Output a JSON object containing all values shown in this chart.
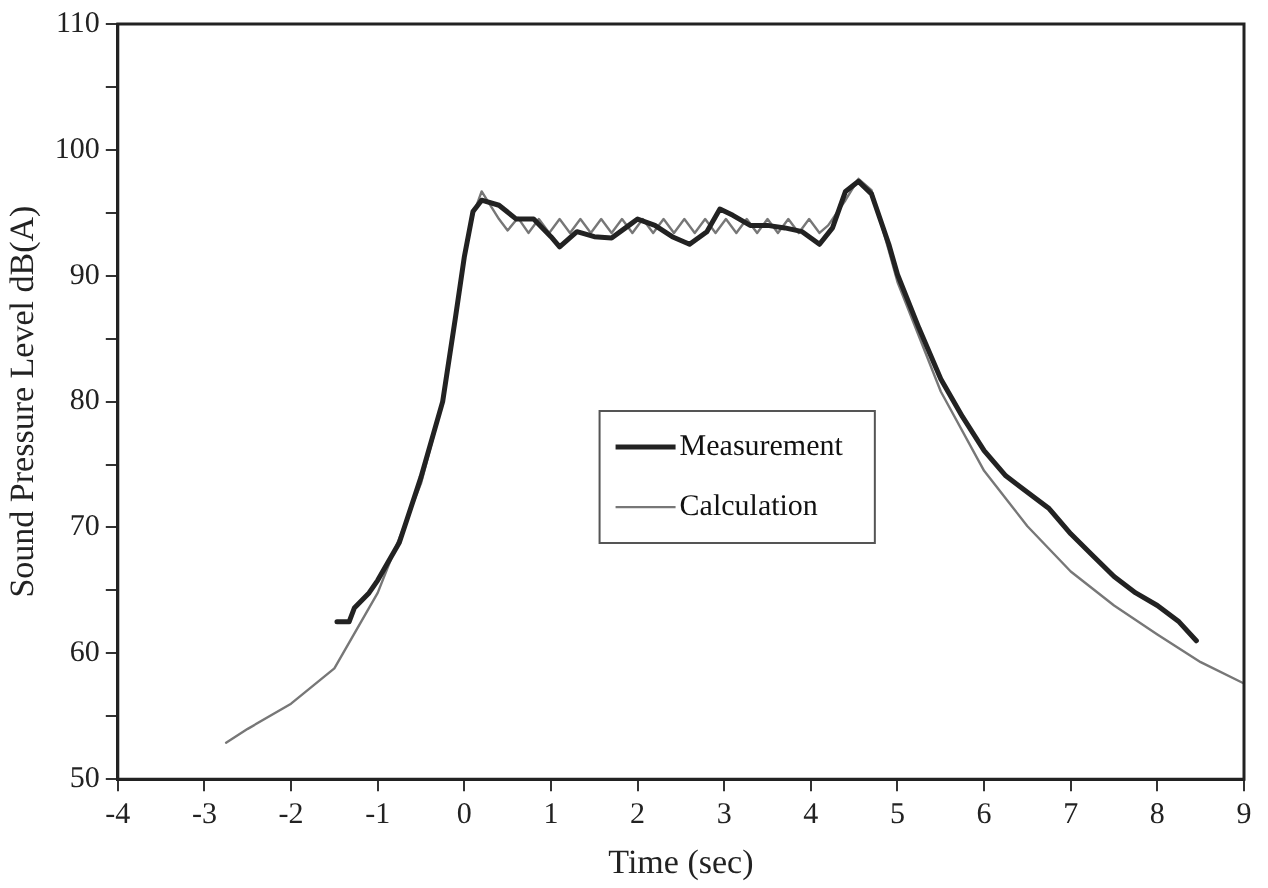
{
  "chart_data": {
    "type": "line",
    "xlabel": "Time (sec)",
    "ylabel": "Sound Pressure Level dB(A)",
    "xlim": [
      -4,
      9
    ],
    "xticks": [
      -4,
      -3,
      -2,
      -1,
      0,
      1,
      2,
      3,
      4,
      5,
      6,
      7,
      8,
      9
    ],
    "ylim": [
      50,
      110
    ],
    "yticks": [
      50,
      {
        "value": 55,
        "label": null
      },
      60,
      {
        "value": 65,
        "label": null
      },
      70,
      {
        "value": 75,
        "label": null
      },
      80,
      {
        "value": 85,
        "label": null
      },
      90,
      {
        "value": 95,
        "label": null
      },
      100,
      {
        "value": 105,
        "label": null
      },
      110
    ],
    "grid": false,
    "legend": "center",
    "marker": "none",
    "line_style": "solid",
    "series": [
      {
        "name": "Measurement",
        "color": "#222222",
        "x": [
          -1.47,
          -1.33,
          -1.27,
          -1.1,
          -1,
          -0.75,
          -0.5,
          -0.25,
          -0.1,
          0,
          0.1,
          0.2,
          0.4,
          0.6,
          0.8,
          1,
          1.1,
          1.3,
          1.5,
          1.7,
          1.9,
          2,
          2.2,
          2.4,
          2.6,
          2.8,
          2.95,
          3.1,
          3.3,
          3.5,
          3.7,
          3.9,
          4,
          4.1,
          4.25,
          4.4,
          4.55,
          4.7,
          4.9,
          5,
          5.25,
          5.5,
          5.75,
          6,
          6.25,
          6.5,
          6.75,
          7,
          7.25,
          7.5,
          7.75,
          8,
          8.25,
          8.45
        ],
        "values": [
          62.5,
          62.5,
          63.6,
          64.8,
          65.8,
          68.8,
          74,
          80,
          86.8,
          91.5,
          95.1,
          96,
          95.6,
          94.5,
          94.5,
          93.1,
          92.3,
          93.5,
          93.1,
          93,
          94,
          94.5,
          94,
          93.1,
          92.5,
          93.5,
          95.3,
          94.8,
          94,
          94,
          93.8,
          93.5,
          93,
          92.5,
          93.8,
          96.7,
          97.5,
          96.5,
          92.5,
          90.1,
          85.8,
          81.8,
          78.8,
          76.1,
          74.1,
          72.8,
          71.5,
          69.5,
          67.8,
          66.1,
          64.8,
          63.8,
          62.5,
          61
        ]
      },
      {
        "name": "Calculation",
        "color": "#777777",
        "x": [
          -2.75,
          -2.5,
          -2,
          -1.5,
          -1,
          -0.5,
          -0.25,
          0,
          0.1,
          0.2,
          0.4,
          0.5,
          0.62,
          0.74,
          0.86,
          0.98,
          1.1,
          1.22,
          1.34,
          1.46,
          1.58,
          1.7,
          1.82,
          1.94,
          2.06,
          2.18,
          2.3,
          2.42,
          2.54,
          2.66,
          2.78,
          2.9,
          3.02,
          3.14,
          3.26,
          3.38,
          3.5,
          3.62,
          3.74,
          3.86,
          3.98,
          4.1,
          4.2,
          4.4,
          4.55,
          4.7,
          4.9,
          5,
          5.5,
          6,
          6.5,
          7,
          7.5,
          8,
          8.5,
          9
        ],
        "values": [
          52.9,
          54,
          56,
          58.8,
          64.8,
          73.5,
          80,
          91.5,
          94.8,
          96.7,
          94.5,
          93.6,
          94.6,
          93.4,
          94.5,
          93.4,
          94.5,
          93.4,
          94.5,
          93.4,
          94.5,
          93.4,
          94.5,
          93.4,
          94.5,
          93.4,
          94.5,
          93.4,
          94.5,
          93.4,
          94.5,
          93.4,
          94.5,
          93.4,
          94.5,
          93.4,
          94.5,
          93.4,
          94.5,
          93.4,
          94.5,
          93.4,
          94,
          96,
          97.7,
          96.8,
          92,
          89.5,
          80.8,
          74.5,
          70.1,
          66.5,
          63.8,
          61.5,
          59.3,
          57.6
        ]
      }
    ]
  }
}
